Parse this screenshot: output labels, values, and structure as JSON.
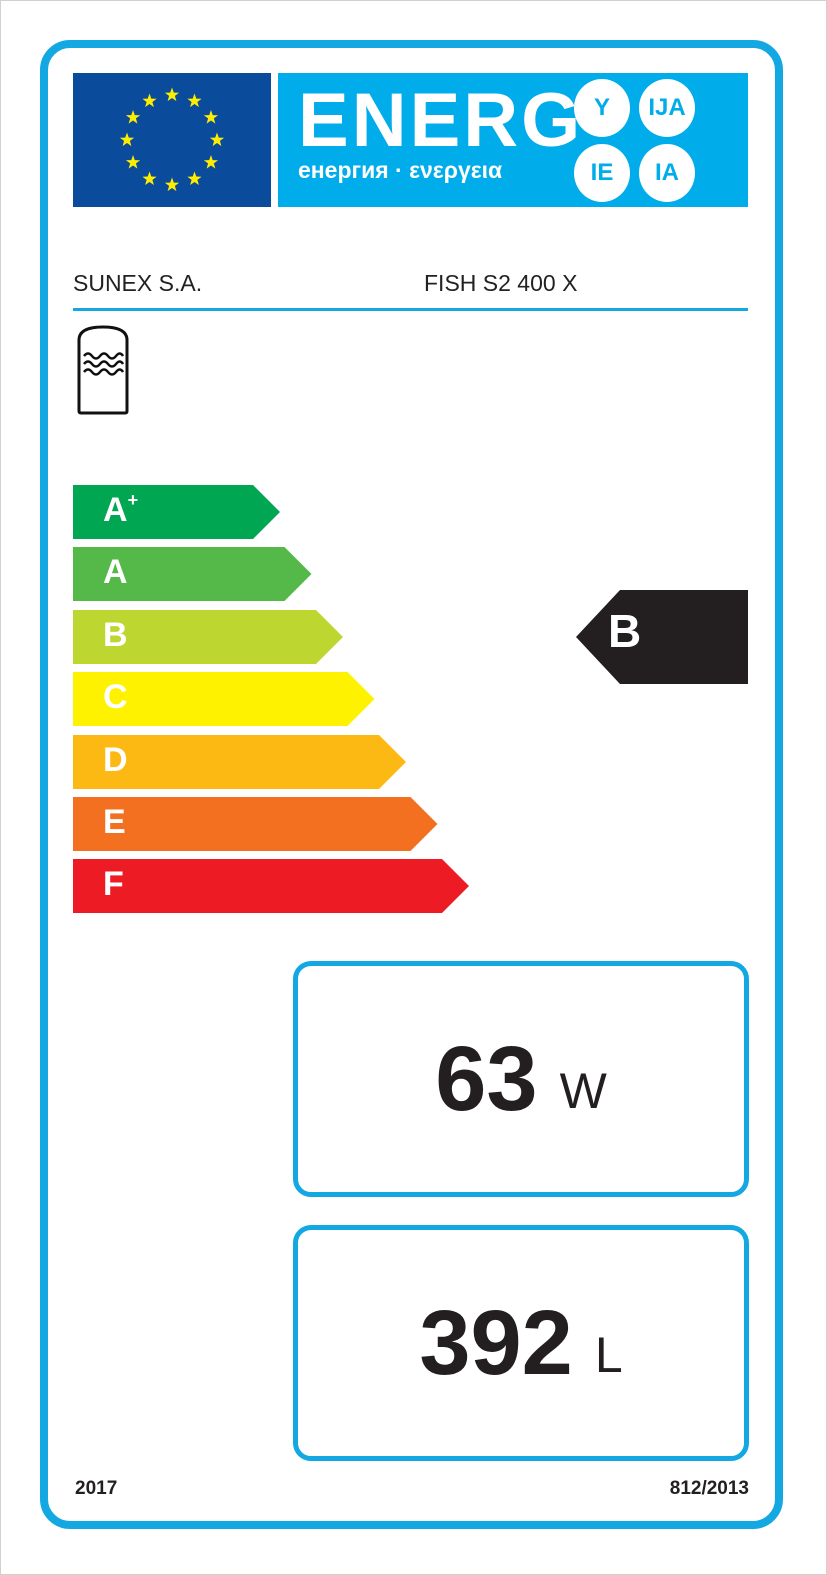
{
  "header": {
    "energy_word": "ENERG",
    "energy_subtitle": "енергия · ενεργεια",
    "suffixes": [
      "Y",
      "IJA",
      "IE",
      "IA"
    ],
    "flag_color": "#0a4b9c",
    "brand_color": "#00adea"
  },
  "product": {
    "supplier": "SUNEX S.A.",
    "model": "FISH S2 400 X",
    "icon": "water-tank-icon"
  },
  "scale": [
    {
      "label": "A",
      "sup": "+",
      "color": "#00a651"
    },
    {
      "label": "A",
      "sup": "",
      "color": "#54b948"
    },
    {
      "label": "B",
      "sup": "",
      "color": "#bed630"
    },
    {
      "label": "C",
      "sup": "",
      "color": "#fff200"
    },
    {
      "label": "D",
      "sup": "",
      "color": "#fdb913"
    },
    {
      "label": "E",
      "sup": "",
      "color": "#f37021"
    },
    {
      "label": "F",
      "sup": "",
      "color": "#ed1c24"
    }
  ],
  "rating": {
    "class": "B",
    "color": "#231f20"
  },
  "standing_loss": {
    "value": "63",
    "unit": "W"
  },
  "volume": {
    "value": "392",
    "unit": "L"
  },
  "footer": {
    "year": "2017",
    "regulation": "812/2013"
  }
}
